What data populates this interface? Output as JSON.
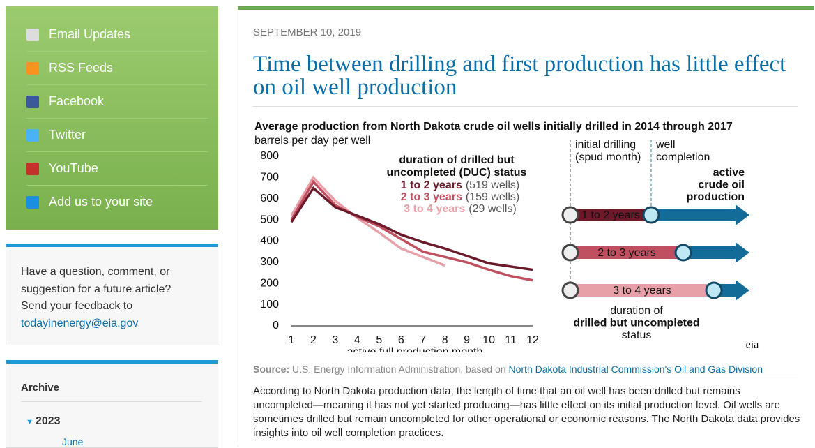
{
  "sidebar": {
    "links": [
      "Email Updates",
      "RSS Feeds",
      "Facebook",
      "Twitter",
      "YouTube",
      "Add us to your site"
    ],
    "feedback": [
      "Have a question, comment, or",
      "suggestion for a future article?",
      "Send your feedback to"
    ],
    "feedback_email": "todayinenergy@eia.gov",
    "archive_title": "Archive",
    "archive_year": "2023",
    "archive_month": "June"
  },
  "article": {
    "date": "SEPTEMBER 10, 2019",
    "title": "Time between drilling and first production has little effect on oil well production",
    "source_label": "Source:",
    "source_text": "U.S. Energy Information Administration, based on ",
    "source_link": "North Dakota Industrial Commission's Oil and Gas Division",
    "body": "According to North Dakota production data, the length of time that an oil well has been drilled but remains uncompleted—meaning it has not yet started producing—has little effect on its initial production level. Oil wells are sometimes drilled but remain uncompleted for other operational or economic reasons. The North Dakota data provides insights into oil well completion practices."
  },
  "chart_data": {
    "type": "line",
    "title": "Average production from North Dakota crude oil wells initially drilled in 2014 through 2017",
    "y_label": "barrels per day per well",
    "x_label": "active full production month",
    "legend_title": [
      "duration of drilled but",
      "uncompleted (DUC) status"
    ],
    "x": [
      1,
      2,
      3,
      4,
      5,
      6,
      7,
      8,
      9,
      10,
      11,
      12
    ],
    "xlim": [
      1,
      12
    ],
    "xticks": [
      1,
      2,
      3,
      4,
      5,
      6,
      7,
      8,
      9,
      10,
      11,
      12
    ],
    "ylim": [
      0,
      800
    ],
    "yticks": [
      0,
      100,
      200,
      300,
      400,
      500,
      600,
      700,
      800
    ],
    "series": [
      {
        "name": "1 to 2 years",
        "wells": "(519 wells)",
        "color": "#6b1a2a",
        "values": [
          490,
          650,
          560,
          520,
          480,
          430,
          395,
          365,
          330,
          295,
          280,
          265
        ]
      },
      {
        "name": "2 to 3 years",
        "wells": "(159 wells)",
        "color": "#c0505f",
        "values": [
          500,
          680,
          570,
          515,
          470,
          410,
          350,
          325,
          300,
          265,
          235,
          215
        ]
      },
      {
        "name": "3 to 4 years",
        "wells": "(29 wells)",
        "color": "#e8a0a8",
        "values": [
          520,
          700,
          590,
          510,
          440,
          365,
          325,
          285,
          null,
          null,
          null,
          null
        ]
      }
    ],
    "diagram": {
      "drilling": [
        "initial drilling",
        "(spud month)"
      ],
      "completion": [
        "well",
        "completion"
      ],
      "production": [
        "active",
        "crude oil",
        "production"
      ],
      "duration": [
        "duration of",
        "drilled but uncompleted",
        "status"
      ],
      "logo": "eia"
    }
  }
}
